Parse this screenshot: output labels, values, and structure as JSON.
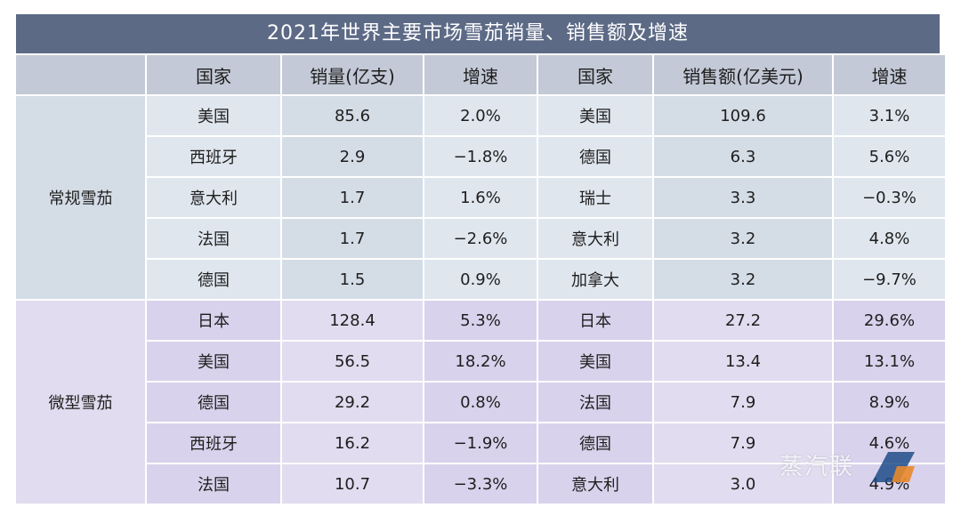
{
  "chart_data": {
    "type": "table",
    "title": "2021年世界主要市场雪茄销量、销售额及增速",
    "headers": [
      "",
      "国家",
      "销量(亿支)",
      "增速",
      "国家",
      "销售额(亿美元)",
      "增速"
    ],
    "groups": [
      {
        "name": "常规雪茄",
        "rows": [
          [
            "美国",
            "85.6",
            "2.0%",
            "美国",
            "109.6",
            "3.1%"
          ],
          [
            "西班牙",
            "2.9",
            "−1.8%",
            "德国",
            "6.3",
            "5.6%"
          ],
          [
            "意大利",
            "1.7",
            "1.6%",
            "瑞士",
            "3.3",
            "−0.3%"
          ],
          [
            "法国",
            "1.7",
            "−2.6%",
            "意大利",
            "3.2",
            "4.8%"
          ],
          [
            "德国",
            "1.5",
            "0.9%",
            "加拿大",
            "3.2",
            "−9.7%"
          ]
        ]
      },
      {
        "name": "微型雪茄",
        "rows": [
          [
            "日本",
            "128.4",
            "5.3%",
            "日本",
            "27.2",
            "29.6%"
          ],
          [
            "美国",
            "56.5",
            "18.2%",
            "美国",
            "13.4",
            "13.1%"
          ],
          [
            "德国",
            "29.2",
            "0.8%",
            "法国",
            "7.9",
            "8.9%"
          ],
          [
            "西班牙",
            "16.2",
            "−1.9%",
            "德国",
            "7.9",
            "4.6%"
          ],
          [
            "法国",
            "10.7",
            "−3.3%",
            "意大利",
            "3.0",
            "4.9%"
          ]
        ]
      }
    ]
  },
  "watermark": {
    "text": "蒸汽联",
    "icon": "logo-mark"
  }
}
